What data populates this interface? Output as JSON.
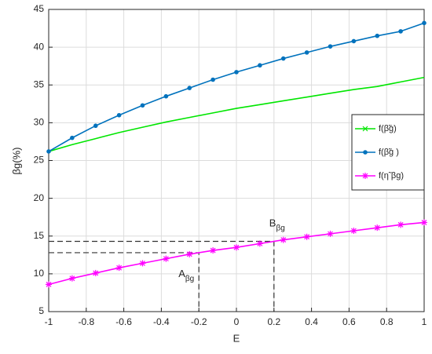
{
  "chart_data": {
    "type": "line",
    "x_label": "E",
    "y_label": "βg(%)",
    "x": [
      -1,
      -0.875,
      -0.75,
      -0.625,
      -0.5,
      -0.375,
      -0.25,
      -0.125,
      0,
      0.125,
      0.25,
      0.375,
      0.5,
      0.625,
      0.75,
      0.875,
      1
    ],
    "series": [
      {
        "name": "f(β̃g)",
        "color": "#00e600",
        "marker": "none",
        "legend_marker": "x",
        "values": [
          26.2,
          27.1,
          27.9,
          28.7,
          29.4,
          30.1,
          30.7,
          31.3,
          31.9,
          32.4,
          32.9,
          33.4,
          33.9,
          34.4,
          34.8,
          35.4,
          36.0
        ]
      },
      {
        "name": "f(β̃g )",
        "color": "#0072bd",
        "marker": "dot",
        "legend_marker": "dot",
        "values": [
          26.2,
          28.0,
          29.6,
          31.0,
          32.3,
          33.5,
          34.6,
          35.7,
          36.7,
          37.6,
          38.5,
          39.3,
          40.1,
          40.8,
          41.5,
          42.1,
          43.2
        ]
      },
      {
        "name": "f(η̃ βg)",
        "color": "#ff00ff",
        "marker": "star",
        "legend_marker": "star",
        "values": [
          8.6,
          9.4,
          10.1,
          10.8,
          11.4,
          12.0,
          12.6,
          13.1,
          13.5,
          14.0,
          14.5,
          14.9,
          15.3,
          15.7,
          16.1,
          16.5,
          16.8
        ]
      }
    ],
    "annotations": [
      {
        "label": "A",
        "subscript": "βg",
        "x": -0.2,
        "y": 12.8
      },
      {
        "label": "B",
        "subscript": "βg",
        "x": 0.2,
        "y": 14.3
      }
    ],
    "xlim": [
      -1,
      1
    ],
    "xticks": [
      -1,
      -0.8,
      -0.6,
      -0.4,
      -0.2,
      0,
      0.2,
      0.4,
      0.6,
      0.8,
      1
    ],
    "ylim": [
      5,
      45
    ],
    "yticks": [
      5,
      10,
      15,
      20,
      25,
      30,
      35,
      40,
      45
    ],
    "grid": true,
    "legend": "right"
  }
}
